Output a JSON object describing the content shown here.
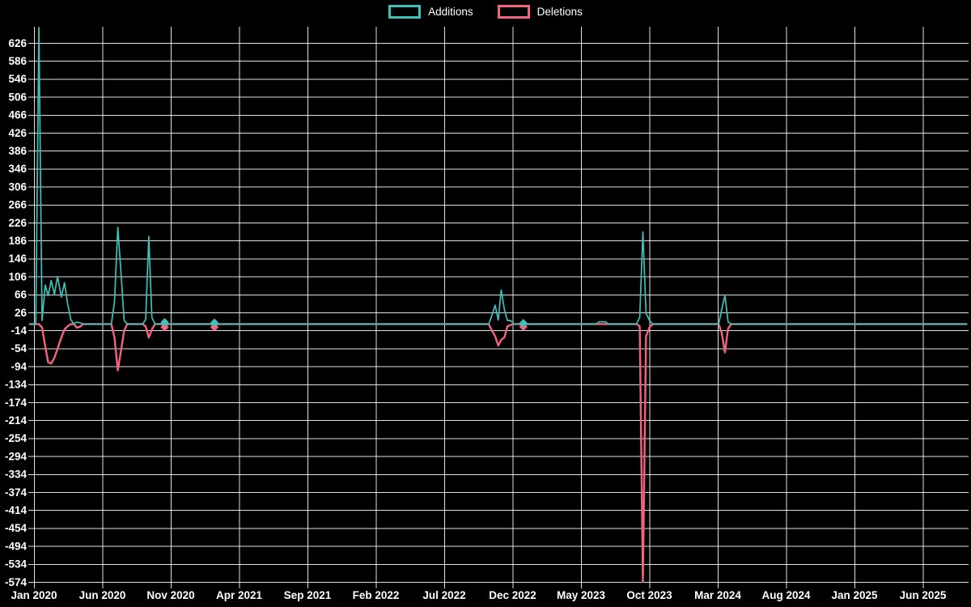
{
  "legend": {
    "additions_label": "Additions",
    "deletions_label": "Deletions"
  },
  "colors": {
    "additions": "#3ec1b8",
    "deletions": "#f2647c",
    "grid": "rgba(255,255,255,0.88)",
    "text": "#ffffff",
    "background": "#000000"
  },
  "chart_data": {
    "type": "line",
    "title": "",
    "xlabel": "",
    "ylabel": "",
    "legend_position": "top",
    "grid": true,
    "x_tick_labels": [
      "Jan 2020",
      "Jun 2020",
      "Nov 2020",
      "Apr 2021",
      "Sep 2021",
      "Feb 2022",
      "Jul 2022",
      "Dec 2022",
      "May 2023",
      "Oct 2023",
      "Mar 2024",
      "Aug 2024",
      "Jan 2025",
      "Jun 2025"
    ],
    "x_tick_interval_months": 5,
    "y_ticks": [
      626,
      586,
      546,
      506,
      466,
      426,
      386,
      346,
      306,
      266,
      226,
      186,
      146,
      106,
      66,
      26,
      -14,
      -54,
      -94,
      -134,
      -174,
      -214,
      -254,
      -294,
      -334,
      -374,
      -414,
      -454,
      -494,
      -534,
      -574
    ],
    "ylim": [
      -574,
      663
    ],
    "series_names": [
      "Additions",
      "Deletions"
    ],
    "weeks": [
      [
        "2019-12-22",
        0,
        0
      ],
      [
        "2020-01-05",
        0,
        0
      ],
      [
        "2020-01-12",
        660,
        0
      ],
      [
        "2020-01-19",
        8,
        -8
      ],
      [
        "2020-01-26",
        87,
        -50
      ],
      [
        "2020-02-02",
        63,
        -85
      ],
      [
        "2020-02-09",
        97,
        -88
      ],
      [
        "2020-02-16",
        66,
        -75
      ],
      [
        "2020-02-23",
        106,
        -55
      ],
      [
        "2020-03-01",
        60,
        -30
      ],
      [
        "2020-03-08",
        92,
        -12
      ],
      [
        "2020-03-15",
        45,
        -5
      ],
      [
        "2020-03-22",
        10,
        0
      ],
      [
        "2020-03-29",
        0,
        0
      ],
      [
        "2020-04-05",
        4,
        -8
      ],
      [
        "2020-04-12",
        3,
        -6
      ],
      [
        "2020-04-19",
        0,
        0
      ],
      [
        "2020-06-21",
        0,
        0
      ],
      [
        "2020-06-28",
        50,
        -30
      ],
      [
        "2020-07-05",
        215,
        -103
      ],
      [
        "2020-07-12",
        115,
        -60
      ],
      [
        "2020-07-19",
        8,
        -15
      ],
      [
        "2020-07-26",
        0,
        0
      ],
      [
        "2020-08-30",
        0,
        0
      ],
      [
        "2020-09-06",
        10,
        -5
      ],
      [
        "2020-09-13",
        195,
        -30
      ],
      [
        "2020-09-20",
        15,
        -12
      ],
      [
        "2020-09-27",
        0,
        0
      ],
      [
        "2020-10-11",
        0,
        0
      ],
      [
        "2020-10-18",
        4,
        -7
      ],
      [
        "2020-10-25",
        0,
        0
      ],
      [
        "2021-01-31",
        0,
        0
      ],
      [
        "2021-02-07",
        3,
        -7
      ],
      [
        "2021-02-14",
        0,
        0
      ],
      [
        "2022-10-09",
        0,
        0
      ],
      [
        "2022-10-16",
        20,
        -15
      ],
      [
        "2022-10-23",
        42,
        -27
      ],
      [
        "2022-10-30",
        9,
        -48
      ],
      [
        "2022-11-06",
        76,
        -35
      ],
      [
        "2022-11-13",
        33,
        -30
      ],
      [
        "2022-11-20",
        8,
        -5
      ],
      [
        "2022-11-27",
        8,
        -2
      ],
      [
        "2022-12-04",
        0,
        0
      ],
      [
        "2022-12-18",
        0,
        0
      ],
      [
        "2022-12-25",
        2,
        -6
      ],
      [
        "2023-01-01",
        0,
        0
      ],
      [
        "2023-06-04",
        0,
        0
      ],
      [
        "2023-06-11",
        5,
        0
      ],
      [
        "2023-06-18",
        5,
        0
      ],
      [
        "2023-06-25",
        5,
        0
      ],
      [
        "2023-07-02",
        0,
        0
      ],
      [
        "2023-09-03",
        0,
        0
      ],
      [
        "2023-09-10",
        15,
        -5
      ],
      [
        "2023-09-17",
        205,
        -574
      ],
      [
        "2023-09-24",
        24,
        -27
      ],
      [
        "2023-10-01",
        9,
        -8
      ],
      [
        "2023-10-08",
        0,
        0
      ],
      [
        "2024-03-03",
        0,
        0
      ],
      [
        "2024-03-10",
        33,
        -20
      ],
      [
        "2024-03-17",
        64,
        -63
      ],
      [
        "2024-03-24",
        5,
        -10
      ],
      [
        "2024-03-31",
        0,
        0
      ],
      [
        "2025-09-07",
        0,
        0
      ]
    ],
    "marker_dates": [
      "2020-10-18",
      "2021-02-07",
      "2022-12-25"
    ]
  }
}
